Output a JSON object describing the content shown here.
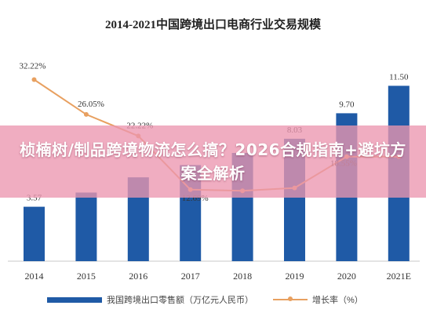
{
  "banner": {
    "text": "桢楠树/制品跨境物流怎么搞？2026合规指南+避坑方案全解析"
  },
  "colors": {
    "bar": "#1f5aa6",
    "line": "#e8a060",
    "banner": "#ec96b0"
  },
  "chart_data": {
    "type": "bar",
    "title": "2014-2021中国跨境出口电商行业交易规模",
    "categories": [
      "2014",
      "2015",
      "2016",
      "2017",
      "2018",
      "2019",
      "2020",
      "2021E"
    ],
    "series": [
      {
        "name": "我国跨境出口零售额（万亿元人民币）",
        "type": "bar",
        "values": [
          3.57,
          4.5,
          5.5,
          6.3,
          7.1,
          8.03,
          9.7,
          11.5
        ],
        "labels": [
          "3.57",
          "",
          "",
          "",
          "",
          "8.03",
          "9.70",
          "11.50"
        ]
      },
      {
        "name": "增长率（%）",
        "type": "line",
        "values": [
          32.22,
          26.05,
          22.22,
          12.69,
          12.5,
          13.0,
          18.55,
          18.55
        ],
        "labels": [
          "32.22%",
          "26.05%",
          "22.22%",
          "12.69%",
          "",
          "",
          "18.55%",
          ""
        ]
      }
    ],
    "ylim_bar": [
      0,
      12.5
    ],
    "ylim_line": [
      0,
      38
    ],
    "grid": false,
    "legend": "bottom"
  }
}
